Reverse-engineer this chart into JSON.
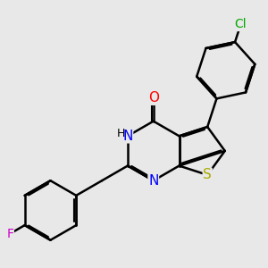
{
  "bg_color": "#e8e8e8",
  "bond_color": "#000000",
  "bond_width": 1.8,
  "dbo": 0.055,
  "atom_colors": {
    "N": "#0000ff",
    "O": "#ff0000",
    "S": "#aaaa00",
    "Cl": "#00aa00",
    "F": "#cc00cc",
    "H": "#000000",
    "C": "#000000"
  },
  "font_size": 10,
  "fig_size": [
    3.0,
    3.0
  ],
  "dpi": 100,
  "BL": 1.0
}
